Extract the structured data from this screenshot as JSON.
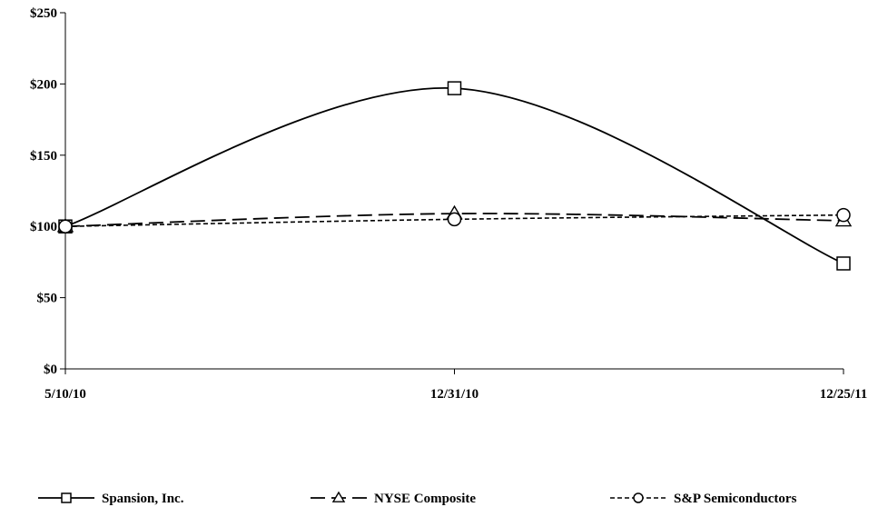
{
  "chart_data": {
    "type": "line",
    "title": "",
    "xlabel": "",
    "ylabel": "",
    "categories": [
      "5/10/10",
      "12/31/10",
      "12/25/11"
    ],
    "ylim": [
      0,
      250
    ],
    "yticks": [
      0,
      50,
      100,
      150,
      200,
      250
    ],
    "ytick_labels": [
      "$0",
      "$50",
      "$100",
      "$150",
      "$200",
      "$250"
    ],
    "grid": false,
    "legend_position": "bottom",
    "series": [
      {
        "name": "Spansion, Inc.",
        "values": [
          100,
          197,
          74
        ],
        "marker": "square",
        "dash": "solid",
        "color": "#000000"
      },
      {
        "name": "NYSE Composite",
        "values": [
          100,
          109,
          104
        ],
        "marker": "triangle",
        "dash": "long-dash",
        "color": "#000000"
      },
      {
        "name": "S&P Semiconductors",
        "values": [
          100,
          105,
          108
        ],
        "marker": "circle",
        "dash": "short-dash",
        "color": "#000000"
      }
    ]
  }
}
